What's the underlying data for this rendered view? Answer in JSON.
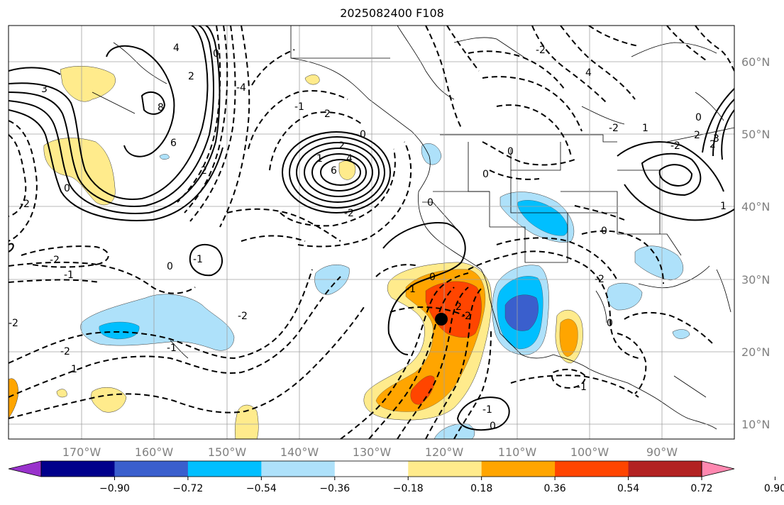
{
  "title": "2025082400 F108",
  "lon_labels": [
    "170°W",
    "160°W",
    "150°W",
    "140°W",
    "130°W",
    "120°W",
    "110°W",
    "100°W",
    "90°W"
  ],
  "lat_labels": [
    "60°N",
    "50°N",
    "40°N",
    "30°N",
    "20°N",
    "10°N"
  ],
  "colorbar": {
    "colors": [
      "#9932cc",
      "#00008b",
      "#3a5fcd",
      "#00bfff",
      "#aee1fa",
      "#ffffff",
      "#ffeb8c",
      "#ffa500",
      "#ff4500",
      "#b22222",
      "#ff88b0"
    ],
    "tick_labels": [
      "−0.90",
      "−0.72",
      "−0.54",
      "−0.36",
      "−0.18",
      "0.18",
      "0.36",
      "0.54",
      "0.72",
      "0.90"
    ]
  },
  "contour_labels": [
    "3",
    "8",
    "6",
    "4",
    "2",
    "0",
    "-2",
    "-4",
    "2",
    "0",
    "-1",
    "-2",
    "0",
    "-1",
    "-2",
    "1",
    "-2",
    "-1",
    "2",
    "-1",
    "1",
    "0",
    "2",
    "4",
    "6",
    "-2",
    "0",
    "0",
    "4",
    "-2",
    "-2",
    "0",
    "2",
    "2",
    "1",
    "0",
    "0",
    "-2",
    "-1",
    "0",
    "-1",
    "-1",
    "0",
    "0",
    "-2",
    "2",
    "3",
    "-2",
    "-2",
    "1"
  ],
  "colors": {
    "axis_label": "#808080",
    "grid": "#a0a0a0",
    "dashed": "#000000"
  },
  "marker": "storm-center-dot"
}
